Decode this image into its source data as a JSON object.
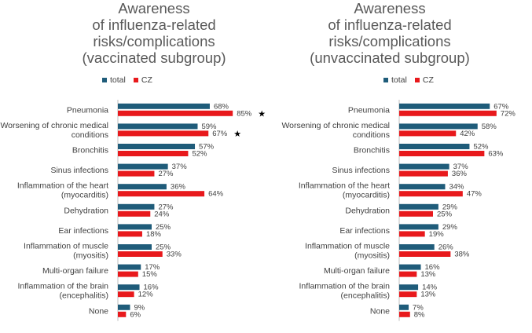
{
  "colors": {
    "total": "#1f5c7a",
    "cz": "#e8191c",
    "axis": "#bfbfbf",
    "label": "#404040"
  },
  "chart_data": [
    {
      "type": "bar",
      "title": "Awareness\nof influenza-related\nrisks/complications\n(vaccinated subgroup)",
      "categories": [
        "Pneumonia",
        "Worsening of chronic medical\nconditions",
        "Bronchitis",
        "Sinus infections",
        "Inflammation of the heart\n(myocarditis)",
        "Dehydration",
        "Ear infections",
        "Inflammation of muscle\n(myositis)",
        "Multi-organ failure",
        "Inflammation of the brain\n(encephalitis)",
        "None"
      ],
      "series": [
        {
          "name": "total",
          "values": [
            68,
            59,
            57,
            37,
            36,
            27,
            25,
            25,
            17,
            16,
            9
          ]
        },
        {
          "name": "CZ",
          "values": [
            85,
            67,
            52,
            27,
            64,
            24,
            18,
            33,
            15,
            12,
            6
          ]
        }
      ],
      "value_suffix": "%",
      "markers": [
        {
          "category_index": 0,
          "series": "CZ",
          "symbol": "★"
        },
        {
          "category_index": 1,
          "series": "CZ",
          "symbol": "★"
        }
      ],
      "xlim": [
        0,
        100
      ],
      "legend_position": "top"
    },
    {
      "type": "bar",
      "title": "Awareness\nof influenza-related\nrisks/complications\n(unvaccinated subgroup)",
      "categories": [
        "Pneumonia",
        "Worsening of chronic medical\nconditions",
        "Bronchitis",
        "Sinus infections",
        "Inflammation of the heart\n(myocarditis)",
        "Dehydration",
        "Ear infections",
        "Inflammation of muscle\n(myositis)",
        "Multi-organ failure",
        "Inflammation of the brain\n(encephalitis)",
        "None"
      ],
      "series": [
        {
          "name": "total",
          "values": [
            67,
            58,
            52,
            37,
            34,
            29,
            29,
            26,
            16,
            14,
            7
          ]
        },
        {
          "name": "CZ",
          "values": [
            72,
            42,
            63,
            36,
            47,
            25,
            19,
            38,
            13,
            13,
            8
          ]
        }
      ],
      "value_suffix": "%",
      "markers": [],
      "xlim": [
        0,
        100
      ],
      "legend_position": "top"
    }
  ]
}
